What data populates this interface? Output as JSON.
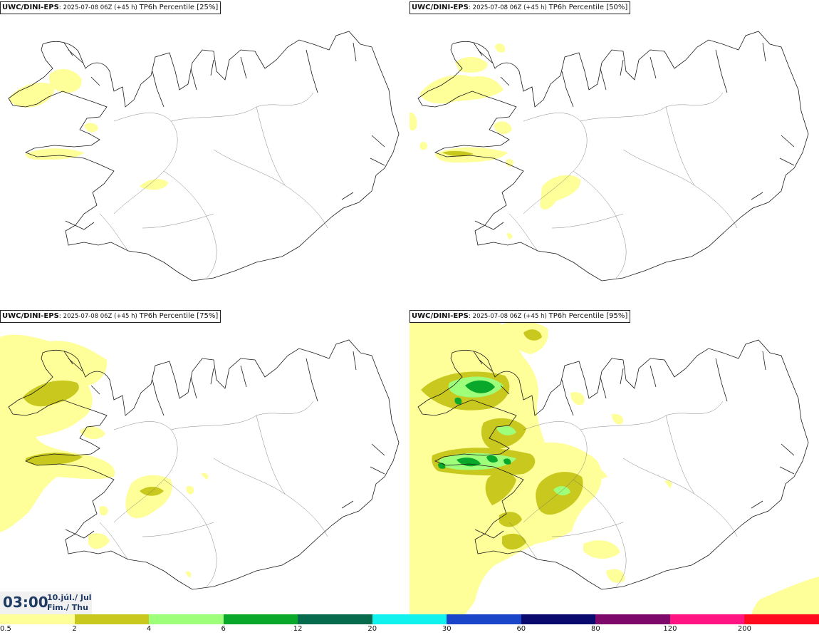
{
  "panels": [
    {
      "model": "UWC/DINI-EPS",
      "run": "2025-07-08 06Z (+45 h)",
      "product": "TP6h Percentile [25%]"
    },
    {
      "model": "UWC/DINI-EPS",
      "run": "2025-07-08 06Z (+45 h)",
      "product": "TP6h Percentile [50%]"
    },
    {
      "model": "UWC/DINI-EPS",
      "run": "2025-07-08 06Z (+45 h)",
      "product": "TP6h Percentile [75%]"
    },
    {
      "model": "UWC/DINI-EPS",
      "run": "2025-07-08 06Z (+45 h)",
      "product": "TP6h Percentile [95%]"
    }
  ],
  "valid_time": {
    "time": "03:00",
    "date_line1": "10.júl./ Jul",
    "date_line2": "Fim./ Thu"
  },
  "legend": {
    "colors": [
      "#ffff99",
      "#c8c81e",
      "#9eff7a",
      "#0aa82a",
      "#066b4c",
      "#11f2ee",
      "#1a45c9",
      "#0a0a6e",
      "#7d0a6b",
      "#ff1482",
      "#ff0a1e"
    ],
    "labels": [
      "0.5",
      "2",
      "4",
      "6",
      "12",
      "20",
      "30",
      "60",
      "80",
      "120",
      "200"
    ]
  }
}
